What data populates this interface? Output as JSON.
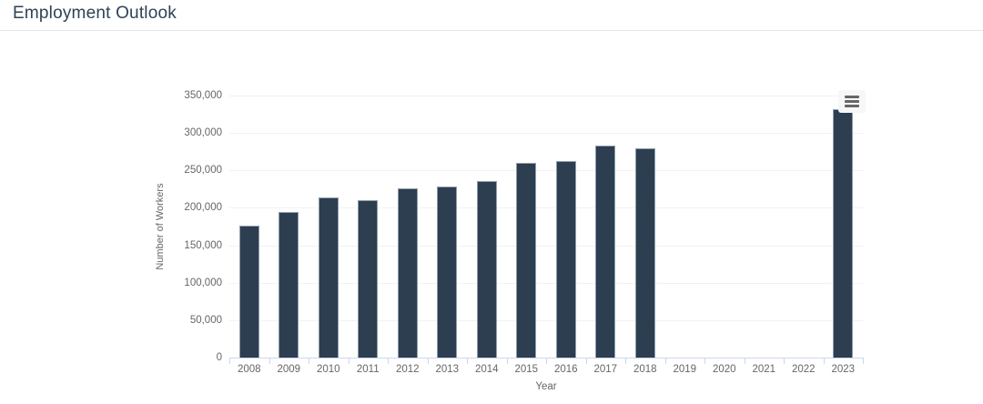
{
  "header": {
    "title": "Employment Outlook"
  },
  "chart": {
    "context_menu_icon": "hamburger-icon"
  },
  "chart_data": {
    "type": "bar",
    "title": "Employment Outlook",
    "xlabel": "Year",
    "ylabel": "Number of Workers",
    "categories": [
      "2008",
      "2009",
      "2010",
      "2011",
      "2012",
      "2013",
      "2014",
      "2015",
      "2016",
      "2017",
      "2018",
      "2019",
      "2020",
      "2021",
      "2022",
      "2023"
    ],
    "values": [
      176000,
      195000,
      214000,
      210000,
      226000,
      229000,
      236000,
      260000,
      262000,
      283000,
      280000,
      null,
      null,
      null,
      null,
      332000
    ],
    "ylim": [
      0,
      350000
    ],
    "ytick_step": 50000,
    "ytick_labels": [
      "0",
      "50,000",
      "100,000",
      "150,000",
      "200,000",
      "250,000",
      "300,000",
      "350,000"
    ],
    "grid": "horizontal-light",
    "legend": "none",
    "colors": {
      "bar_fill": "#2c3e50",
      "bar_border": "#8e9dac",
      "grid_line": "#f2f2f2",
      "axis_line": "#ccd6eb",
      "tick_label": "#666666",
      "axis_title": "#666666",
      "page_title": "#2f4256",
      "menu_icon": "#666666",
      "divider": "#e6e6e6"
    }
  }
}
